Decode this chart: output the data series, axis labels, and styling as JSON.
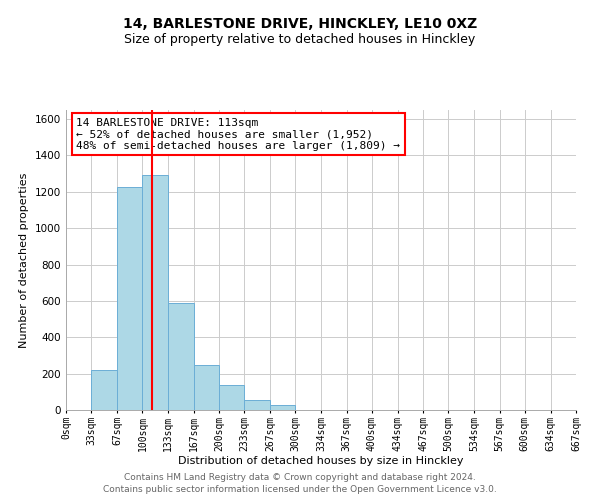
{
  "title_line1": "14, BARLESTONE DRIVE, HINCKLEY, LE10 0XZ",
  "title_line2": "Size of property relative to detached houses in Hinckley",
  "xlabel": "Distribution of detached houses by size in Hinckley",
  "ylabel": "Number of detached properties",
  "footer_line1": "Contains HM Land Registry data © Crown copyright and database right 2024.",
  "footer_line2": "Contains public sector information licensed under the Open Government Licence v3.0.",
  "annotation_line1": "14 BARLESTONE DRIVE: 113sqm",
  "annotation_line2": "← 52% of detached houses are smaller (1,952)",
  "annotation_line3": "48% of semi-detached houses are larger (1,809) →",
  "bar_edges": [
    0,
    33,
    67,
    100,
    133,
    167,
    200,
    233,
    267,
    300,
    334,
    367,
    400,
    434,
    467,
    500,
    534,
    567,
    600,
    634,
    667
  ],
  "bar_heights": [
    0,
    220,
    1225,
    1295,
    590,
    245,
    135,
    55,
    25,
    0,
    0,
    0,
    0,
    0,
    0,
    0,
    0,
    0,
    0,
    0
  ],
  "bar_color": "#add8e6",
  "bar_edge_color": "#6baed6",
  "vline_x": 113,
  "vline_color": "red",
  "ylim": [
    0,
    1650
  ],
  "xlim": [
    0,
    667
  ],
  "annotation_box_color": "white",
  "annotation_box_edge": "red",
  "grid_color": "#cccccc",
  "tick_labels": [
    "0sqm",
    "33sqm",
    "67sqm",
    "100sqm",
    "133sqm",
    "167sqm",
    "200sqm",
    "233sqm",
    "267sqm",
    "300sqm",
    "334sqm",
    "367sqm",
    "400sqm",
    "434sqm",
    "467sqm",
    "500sqm",
    "534sqm",
    "567sqm",
    "600sqm",
    "634sqm",
    "667sqm"
  ],
  "tick_positions": [
    0,
    33,
    67,
    100,
    133,
    167,
    200,
    233,
    267,
    300,
    334,
    367,
    400,
    434,
    467,
    500,
    534,
    567,
    600,
    634,
    667
  ],
  "ytick_positions": [
    0,
    200,
    400,
    600,
    800,
    1000,
    1200,
    1400,
    1600
  ],
  "ytick_labels": [
    "0",
    "200",
    "400",
    "600",
    "800",
    "1000",
    "1200",
    "1400",
    "1600"
  ],
  "title1_fontsize": 10,
  "title2_fontsize": 9,
  "axis_label_fontsize": 8,
  "tick_fontsize": 7,
  "footer_fontsize": 6.5,
  "annotation_fontsize": 8
}
